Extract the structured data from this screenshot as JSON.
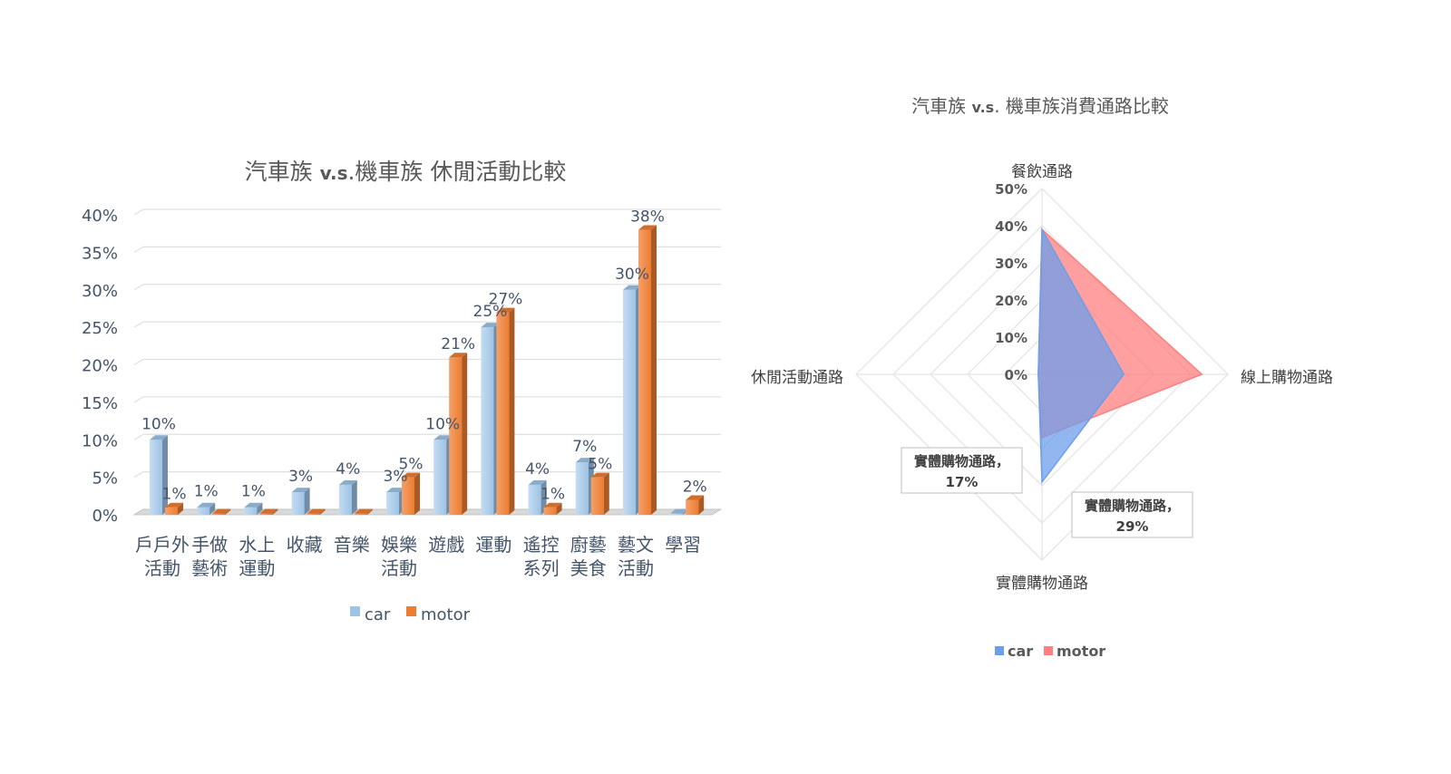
{
  "chart_data": [
    {
      "type": "bar",
      "title_parts": [
        "汽車族 ",
        "v.s",
        ".機車族 休閒活動比較"
      ],
      "categories": [
        [
          "戶戶外",
          "活動"
        ],
        [
          "手做",
          "藝術"
        ],
        [
          "水上",
          "運動"
        ],
        [
          "收藏"
        ],
        [
          "音樂"
        ],
        [
          "娛樂",
          "活動"
        ],
        [
          "遊戲"
        ],
        [
          "運動"
        ],
        [
          "遙控",
          "系列"
        ],
        [
          "廚藝",
          "美食"
        ],
        [
          "藝文",
          "活動"
        ],
        [
          "學習"
        ]
      ],
      "series": [
        {
          "name": "car",
          "color": "#9dc3e6",
          "values": [
            10,
            1,
            1,
            3,
            4,
            3,
            10,
            25,
            4,
            7,
            30,
            0
          ],
          "labels": [
            "10%",
            "1%",
            "1%",
            "3%",
            "4%",
            "3%",
            "10%",
            "25%",
            "4%",
            "7%",
            "30%",
            ""
          ]
        },
        {
          "name": "motor",
          "color": "#ed7d31",
          "values": [
            1,
            0,
            0,
            0,
            0,
            5,
            21,
            27,
            1,
            5,
            38,
            2
          ],
          "labels": [
            "1%",
            "",
            "",
            "",
            "",
            "5%",
            "21%",
            "27%",
            "1%",
            "5%",
            "38%",
            "2%"
          ]
        }
      ],
      "yticks": [
        "0%",
        "5%",
        "10%",
        "15%",
        "20%",
        "25%",
        "30%",
        "35%",
        "40%"
      ],
      "ylim": [
        0,
        40
      ],
      "grid": true,
      "legend": "bottom"
    },
    {
      "type": "radar",
      "title_parts": [
        "汽車族 ",
        "v.s",
        ". 機車族消費通路比較"
      ],
      "axes": [
        "餐飲通路",
        "線上購物通路",
        "實體購物通路",
        "休閒活動通路"
      ],
      "rticks": [
        "0%",
        "10%",
        "20%",
        "30%",
        "40%",
        "50%"
      ],
      "rlim": [
        0,
        50
      ],
      "series": [
        {
          "name": "car",
          "color": "#6d9eeb",
          "values": [
            39,
            22,
            29,
            1
          ]
        },
        {
          "name": "motor",
          "color": "#ff7f7f",
          "values": [
            39,
            43,
            17,
            1
          ]
        }
      ],
      "callouts": [
        {
          "lines": [
            "實體購物通路，",
            "17%"
          ]
        },
        {
          "lines": [
            "實體購物通路，",
            "29%"
          ]
        }
      ],
      "legend": "bottom"
    }
  ]
}
